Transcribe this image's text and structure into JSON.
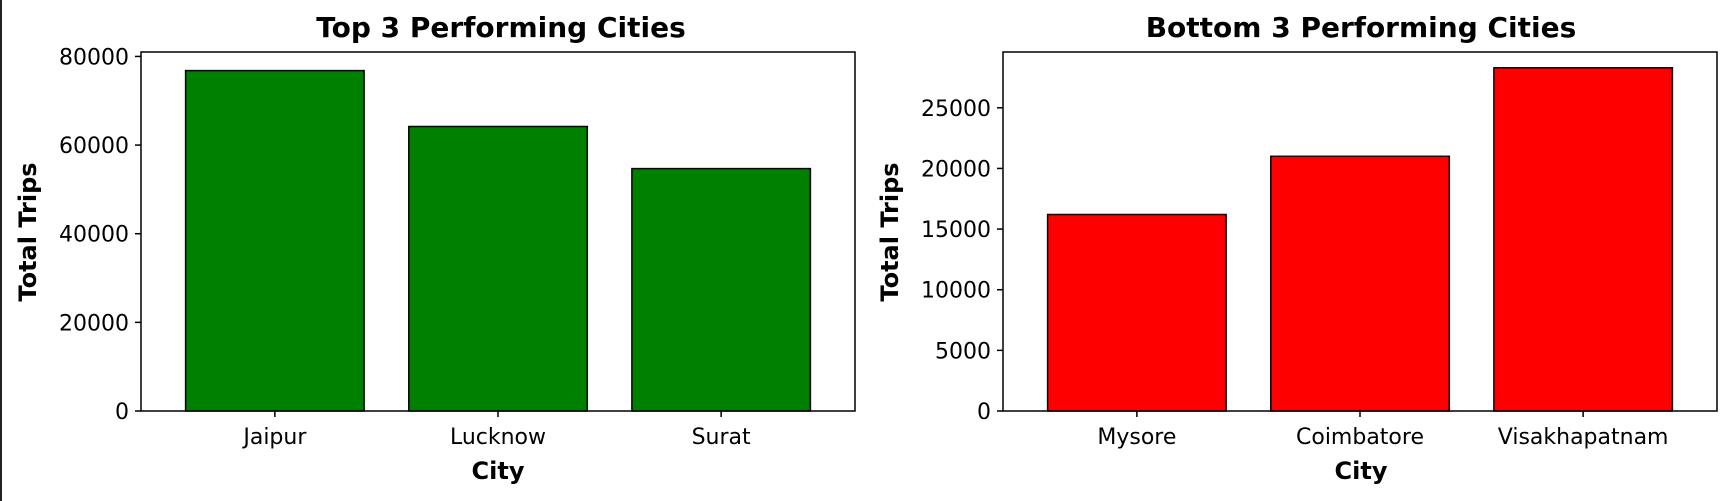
{
  "chart_data": [
    {
      "type": "bar",
      "title": "Top 3 Performing Cities",
      "xlabel": "City",
      "ylabel": "Total Trips",
      "categories": [
        "Jaipur",
        "Lucknow",
        "Surat"
      ],
      "values": [
        76800,
        64200,
        54700
      ],
      "ylim": [
        0,
        81000
      ],
      "yticks": [
        0,
        20000,
        40000,
        60000,
        80000
      ],
      "color": "#008000",
      "edge_color": "#000000",
      "grid": false
    },
    {
      "type": "bar",
      "title": "Bottom 3 Performing Cities",
      "xlabel": "City",
      "ylabel": "Total Trips",
      "categories": [
        "Mysore",
        "Coimbatore",
        "Visakhapatnam"
      ],
      "values": [
        16200,
        21000,
        28300
      ],
      "ylim": [
        0,
        29600
      ],
      "yticks": [
        0,
        5000,
        10000,
        15000,
        20000,
        25000
      ],
      "color": "#ff0000",
      "edge_color": "#000000",
      "grid": false
    }
  ]
}
